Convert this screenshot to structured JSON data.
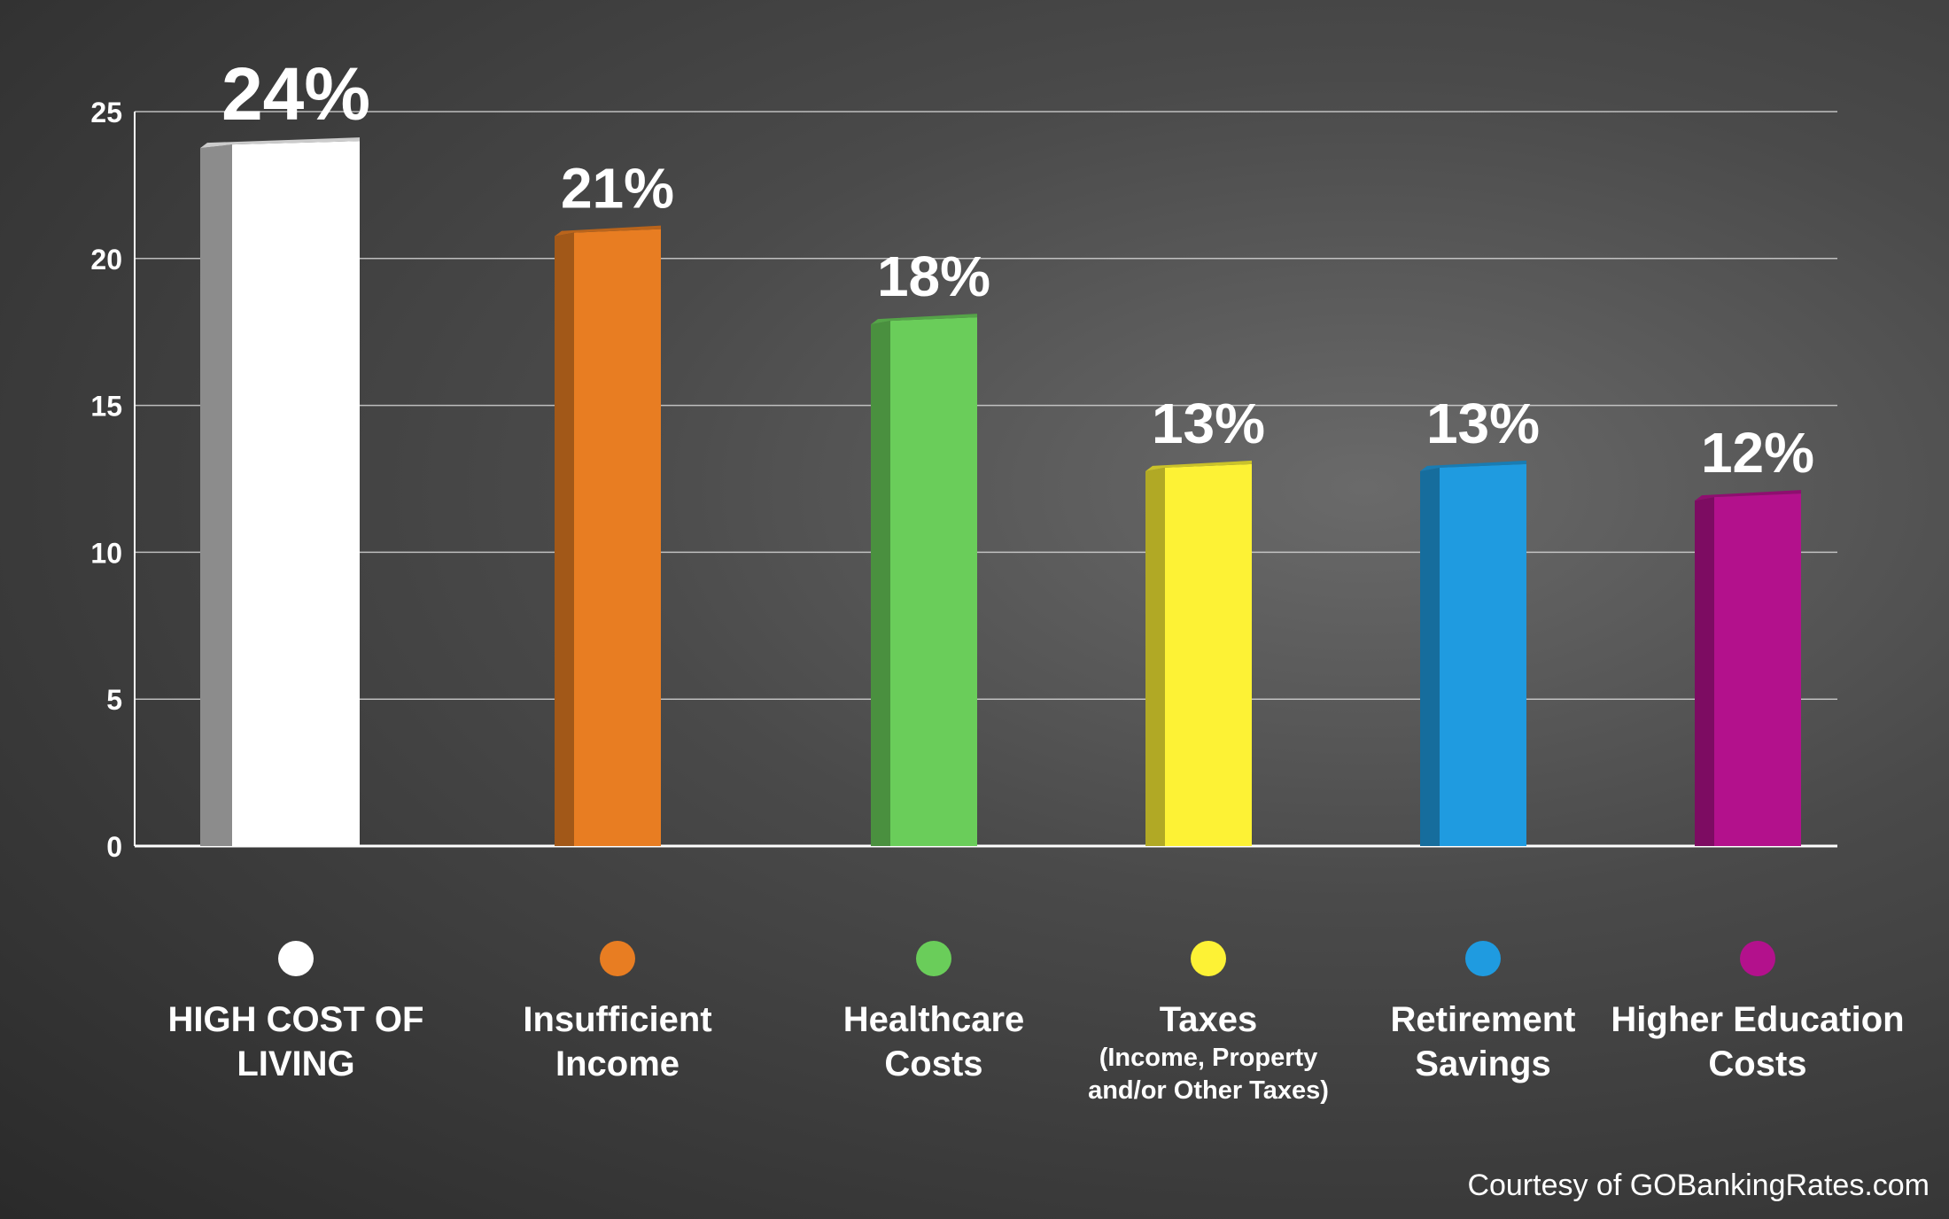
{
  "chart_data": {
    "type": "bar",
    "categories": [
      "HIGH COST OF LIVING",
      "Insufficient Income",
      "Healthcare Costs",
      "Taxes",
      "Retirement Savings",
      "Higher Education Costs"
    ],
    "category_notes": [
      null,
      null,
      null,
      "(Income, Property and/or Other Taxes)",
      null,
      null
    ],
    "values": [
      24,
      21,
      18,
      13,
      13,
      12
    ],
    "value_labels": [
      "24%",
      "21%",
      "18%",
      "13%",
      "13%",
      "12%"
    ],
    "colors": [
      "#ffffff",
      "#e87d22",
      "#6acd5a",
      "#fdf235",
      "#1f9be0",
      "#b3118c"
    ],
    "ylim": [
      0,
      25
    ],
    "yticks": [
      0,
      5,
      10,
      15,
      20,
      25
    ],
    "grid": true,
    "source": "Courtesy of GOBankingRates.com"
  }
}
